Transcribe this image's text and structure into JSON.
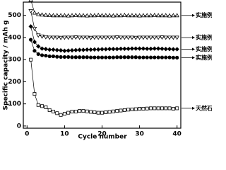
{
  "chart_data": {
    "type": "line",
    "x_label": "Cycle number",
    "y_label": "Specific capacity / mAh g",
    "x": [
      1,
      2,
      3,
      4,
      5,
      6,
      7,
      8,
      9,
      10,
      11,
      12,
      13,
      14,
      15,
      16,
      17,
      18,
      19,
      20,
      21,
      22,
      23,
      24,
      25,
      26,
      27,
      28,
      29,
      30,
      31,
      32,
      33,
      34,
      35,
      36,
      37,
      38,
      39,
      40
    ],
    "xlim": [
      -1,
      41
    ],
    "xticks": [
      0,
      10,
      20,
      30,
      40
    ],
    "ylim": [
      -10,
      560
    ],
    "yticks": [
      0,
      100,
      200,
      300,
      400,
      500
    ],
    "series": [
      {
        "name": "实施例",
        "color": "#000000",
        "marker": "triangle-up",
        "values": [
          570,
          512,
          505,
          503,
          502,
          501,
          500,
          500,
          500,
          500,
          499,
          500,
          501,
          500,
          500,
          499,
          500,
          500,
          501,
          500,
          500,
          500,
          499,
          500,
          500,
          501,
          500,
          500,
          500,
          499,
          500,
          500,
          500,
          501,
          500,
          500,
          500,
          499,
          500,
          500
        ]
      },
      {
        "name": "实施例",
        "color": "#000000",
        "marker": "triangle-down",
        "values": [
          520,
          440,
          410,
          405,
          402,
          400,
          400,
          400,
          399,
          400,
          400,
          400,
          401,
          400,
          400,
          400,
          399,
          400,
          400,
          400,
          400,
          400,
          400,
          401,
          400,
          400,
          400,
          400,
          399,
          400,
          400,
          400,
          400,
          400,
          400,
          401,
          400,
          400,
          400,
          400
        ]
      },
      {
        "name": "实施例",
        "color": "#000000",
        "marker": "diamond",
        "values": [
          450,
          380,
          360,
          350,
          348,
          345,
          345,
          343,
          342,
          340,
          341,
          342,
          343,
          344,
          344,
          345,
          345,
          346,
          346,
          347,
          347,
          348,
          348,
          348,
          349,
          349,
          349,
          350,
          350,
          350,
          350,
          349,
          349,
          350,
          350,
          349,
          348,
          348,
          347,
          347
        ]
      },
      {
        "name": "实施例",
        "color": "#000000",
        "marker": "circle",
        "values": [
          390,
          340,
          325,
          320,
          318,
          315,
          315,
          313,
          312,
          312,
          312,
          311,
          311,
          311,
          311,
          311,
          310,
          310,
          310,
          310,
          310,
          310,
          310,
          311,
          311,
          311,
          311,
          311,
          311,
          310,
          310,
          310,
          310,
          310,
          310,
          310,
          310,
          310,
          309,
          309
        ]
      },
      {
        "name": "天然石",
        "color": "#000000",
        "marker": "square",
        "values": [
          300,
          145,
          95,
          90,
          85,
          72,
          65,
          58,
          50,
          55,
          60,
          65,
          65,
          68,
          68,
          66,
          64,
          62,
          60,
          60,
          62,
          64,
          66,
          68,
          70,
          72,
          74,
          75,
          76,
          78,
          78,
          79,
          80,
          80,
          80,
          80,
          80,
          80,
          78,
          80
        ]
      }
    ]
  }
}
